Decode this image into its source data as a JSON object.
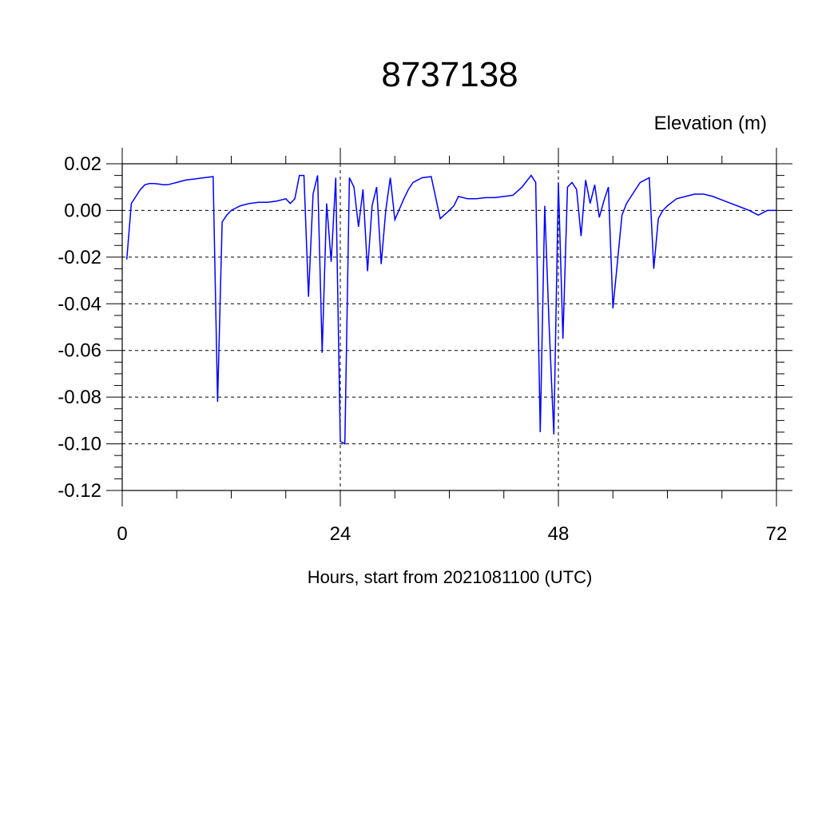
{
  "chart_data": {
    "type": "line",
    "title": "8737138",
    "ylabel": "Elevation (m)",
    "xlabel": "Hours, start from 2021081100 (UTC)",
    "xlim": [
      0,
      72
    ],
    "ylim": [
      -0.12,
      0.02
    ],
    "x_ticks": [
      0,
      24,
      48,
      72
    ],
    "x_tick_labels": [
      "0",
      "24",
      "48",
      "72"
    ],
    "y_ticks": [
      0.02,
      0.0,
      -0.02,
      -0.04,
      -0.06,
      -0.08,
      -0.1,
      -0.12
    ],
    "y_tick_labels": [
      "0.02",
      "0.00",
      "-0.02",
      "-0.04",
      "-0.06",
      "-0.08",
      "-0.10",
      "-0.12"
    ],
    "grid": true,
    "colors": {
      "series": "#0000ff",
      "axes": "#000000"
    },
    "series": [
      {
        "x": [
          0.5,
          1.0,
          2.0,
          2.5,
          3.0,
          3.5,
          4.0,
          4.5,
          5.0,
          5.5,
          6.0,
          6.5,
          7.0,
          8.0,
          9.0,
          10.0,
          10.5,
          11.0,
          11.5,
          12.0,
          12.5,
          13.0,
          13.5,
          14.0,
          15.0,
          16.0,
          17.0,
          18.0,
          18.5,
          19.0,
          19.5,
          20.0,
          20.5,
          21.0,
          21.5,
          22.0,
          22.5,
          23.0,
          23.5,
          24.0,
          24.5,
          25.0,
          25.5,
          26.0,
          26.5,
          27.0,
          27.5,
          28.0,
          28.5,
          29.0,
          29.5,
          30.0,
          31.0,
          31.5,
          32.0,
          33.0,
          34.0,
          35.0,
          36.0,
          36.5,
          37.0,
          38.0,
          39.0,
          40.0,
          41.0,
          42.0,
          43.0,
          44.0,
          45.0,
          45.5,
          46.0,
          46.5,
          47.0,
          47.5,
          48.0,
          48.5,
          49.0,
          49.5,
          50.0,
          50.5,
          51.0,
          51.5,
          52.0,
          52.5,
          53.0,
          53.5,
          54.0,
          55.0,
          55.5,
          56.0,
          57.0,
          58.0,
          58.5,
          59.0,
          59.5,
          60.0,
          61.0,
          62.0,
          63.0,
          64.0,
          65.0,
          66.0,
          67.0,
          68.0,
          69.0,
          70.0,
          71.0,
          72.0
        ],
        "y": [
          -0.021,
          0.003,
          0.009,
          0.011,
          0.0115,
          0.0115,
          0.0113,
          0.011,
          0.011,
          0.0115,
          0.012,
          0.0125,
          0.013,
          0.0135,
          0.014,
          0.0145,
          -0.082,
          -0.005,
          -0.002,
          0.0,
          0.001,
          0.002,
          0.0025,
          0.003,
          0.0035,
          0.0035,
          0.004,
          0.005,
          0.003,
          0.005,
          0.015,
          0.015,
          -0.037,
          0.007,
          0.015,
          -0.061,
          0.003,
          -0.022,
          0.014,
          -0.099,
          -0.1,
          0.014,
          0.01,
          -0.007,
          0.009,
          -0.026,
          0.002,
          0.01,
          -0.023,
          0.0,
          0.014,
          -0.004,
          0.005,
          0.009,
          0.012,
          0.014,
          0.0145,
          -0.0035,
          0.0,
          0.002,
          0.006,
          0.005,
          0.005,
          0.0055,
          0.0055,
          0.006,
          0.0065,
          0.01,
          0.015,
          0.012,
          -0.095,
          0.002,
          -0.051,
          -0.096,
          0.012,
          -0.055,
          0.01,
          0.012,
          0.009,
          -0.011,
          0.013,
          0.003,
          0.011,
          -0.003,
          0.004,
          0.01,
          -0.042,
          -0.002,
          0.003,
          0.006,
          0.012,
          0.014,
          -0.025,
          -0.0035,
          0.0,
          0.002,
          0.005,
          0.006,
          0.007,
          0.007,
          0.006,
          0.0045,
          0.003,
          0.0015,
          0.0,
          -0.002,
          0.0,
          0.0
        ]
      }
    ]
  }
}
